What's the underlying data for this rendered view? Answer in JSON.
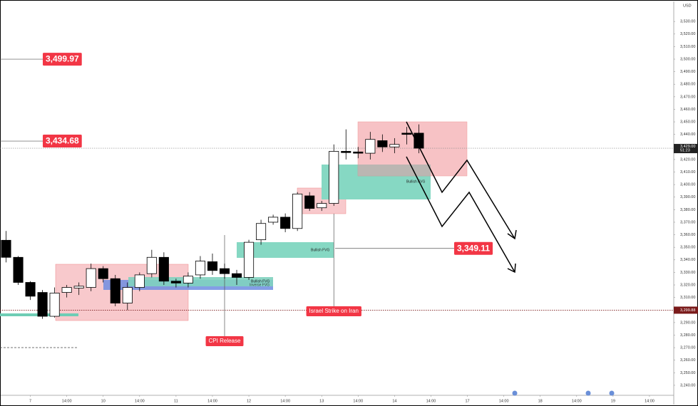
{
  "chart_data": {
    "type": "candlestick",
    "currency": "USD",
    "x": [
      0,
      1,
      2,
      3,
      4,
      5,
      6,
      7,
      8,
      9,
      10,
      11,
      12,
      13,
      14,
      15,
      16,
      17,
      18,
      19,
      20,
      21,
      22,
      23,
      24,
      25,
      26,
      27,
      28,
      29,
      30,
      31,
      32,
      33,
      34
    ],
    "open": [
      3355.6,
      3342,
      3322,
      3314,
      3295,
      3314,
      3317.5,
      3318,
      3333,
      3325,
      3305.5,
      3318,
      3329,
      3342,
      3323,
      3321.5,
      3328,
      3338.5,
      3333,
      3329,
      3326,
      3356,
      3370,
      3374,
      3365,
      3391,
      3381.5,
      3385,
      3426.5,
      3426,
      3425,
      3435,
      3430,
      3441,
      3441
    ],
    "high": [
      3363,
      3343,
      3323,
      3316,
      3318,
      3320,
      3322,
      3337,
      3335,
      3328,
      3322,
      3330,
      3348,
      3346,
      3325,
      3330,
      3343,
      3345,
      3337,
      3332,
      3356,
      3372,
      3376,
      3377,
      3394,
      3394,
      3387,
      3432,
      3444,
      3430,
      3442,
      3440,
      3437,
      3446,
      3448
    ],
    "low": [
      3338,
      3320,
      3308,
      3293,
      3294,
      3310,
      3312,
      3315,
      3322,
      3303,
      3300,
      3315,
      3326,
      3320,
      3318,
      3318,
      3325,
      3328,
      3325,
      3320,
      3324,
      3352,
      3368,
      3362,
      3363,
      3379,
      3379,
      3383,
      3420,
      3421,
      3420,
      3426,
      3425,
      3432,
      3425
    ],
    "close": [
      3342,
      3322,
      3311,
      3295,
      3313.5,
      3318,
      3319,
      3333,
      3325,
      3305.5,
      3318,
      3328,
      3342,
      3323,
      3321.5,
      3327,
      3339,
      3331.5,
      3329,
      3326,
      3354,
      3369,
      3374,
      3365,
      3392.5,
      3381,
      3385,
      3426.5,
      3425.5,
      3425,
      3436,
      3430,
      3432,
      3440,
      3429
    ],
    "up_color": "#ffffff",
    "down_color": "#000000",
    "xlim": [
      -0.5,
      55
    ],
    "xticks": [
      {
        "value": 2,
        "label": "7"
      },
      {
        "value": 5,
        "label": "14:00"
      },
      {
        "value": 8,
        "label": "10"
      },
      {
        "value": 11,
        "label": "14:00"
      },
      {
        "value": 14,
        "label": "11"
      },
      {
        "value": 17,
        "label": "14:00"
      },
      {
        "value": 20,
        "label": "12"
      },
      {
        "value": 23,
        "label": "14:00"
      },
      {
        "value": 26,
        "label": "13"
      },
      {
        "value": 29,
        "label": "14:00"
      },
      {
        "value": 32,
        "label": "14"
      },
      {
        "value": 35,
        "label": "14:00"
      },
      {
        "value": 38,
        "label": "17"
      },
      {
        "value": 41,
        "label": "14:00"
      },
      {
        "value": 44,
        "label": "18"
      },
      {
        "value": 47,
        "label": "14:00"
      },
      {
        "value": 50,
        "label": "19"
      },
      {
        "value": 53,
        "label": "14:00"
      }
    ],
    "ylim": [
      3232,
      3546
    ],
    "yticks": [
      {
        "value": 3240,
        "label": "3,240.00"
      },
      {
        "value": 3250,
        "label": "3,250.00"
      },
      {
        "value": 3260,
        "label": "3,260.00"
      },
      {
        "value": 3270,
        "label": "3,270.00"
      },
      {
        "value": 3280,
        "label": "3,280.00"
      },
      {
        "value": 3290,
        "label": "3,290.00"
      },
      {
        "value": 3310,
        "label": "3,310.00"
      },
      {
        "value": 3320,
        "label": "3,320.00"
      },
      {
        "value": 3330,
        "label": "3,330.00"
      },
      {
        "value": 3340,
        "label": "3,340.00"
      },
      {
        "value": 3350,
        "label": "3,350.00"
      },
      {
        "value": 3360,
        "label": "3,360.00"
      },
      {
        "value": 3370,
        "label": "3,370.00"
      },
      {
        "value": 3380,
        "label": "3,380.00"
      },
      {
        "value": 3390,
        "label": "3,390.00"
      },
      {
        "value": 3400,
        "label": "3,400.00"
      },
      {
        "value": 3410,
        "label": "3,410.00"
      },
      {
        "value": 3420,
        "label": "3,420.00"
      },
      {
        "value": 3440,
        "label": "3,440.00"
      },
      {
        "value": 3450,
        "label": "3,450.00"
      },
      {
        "value": 3460,
        "label": "3,460.00"
      },
      {
        "value": 3470,
        "label": "3,470.00"
      },
      {
        "value": 3480,
        "label": "3,480.00"
      },
      {
        "value": 3490,
        "label": "3,490.00"
      },
      {
        "value": 3500,
        "label": "3,500.00"
      },
      {
        "value": 3510,
        "label": "3,510.00"
      },
      {
        "value": 3520,
        "label": "3,520.00"
      },
      {
        "value": 3530,
        "label": "3,530.00"
      }
    ],
    "price_levels": [
      {
        "value": 3499.97,
        "label": "3,499.97"
      },
      {
        "value": 3434.68,
        "label": "3,434.68"
      },
      {
        "value": 3349.11,
        "label": "3,349.11"
      }
    ],
    "last_price": {
      "value": 3429,
      "label": "3,429.00"
    },
    "countdown": "51:23",
    "marked_level": {
      "value": 3299.88,
      "label": "3,299.88"
    },
    "events": [
      {
        "x": 18,
        "label": "CPI Release"
      },
      {
        "x": 27,
        "label": "Israel Strike on Iran"
      }
    ],
    "zone_labels": [
      "Bullish FVG",
      "Inverse FVG",
      "Bullish FVG",
      "Bullish FVG"
    ]
  }
}
